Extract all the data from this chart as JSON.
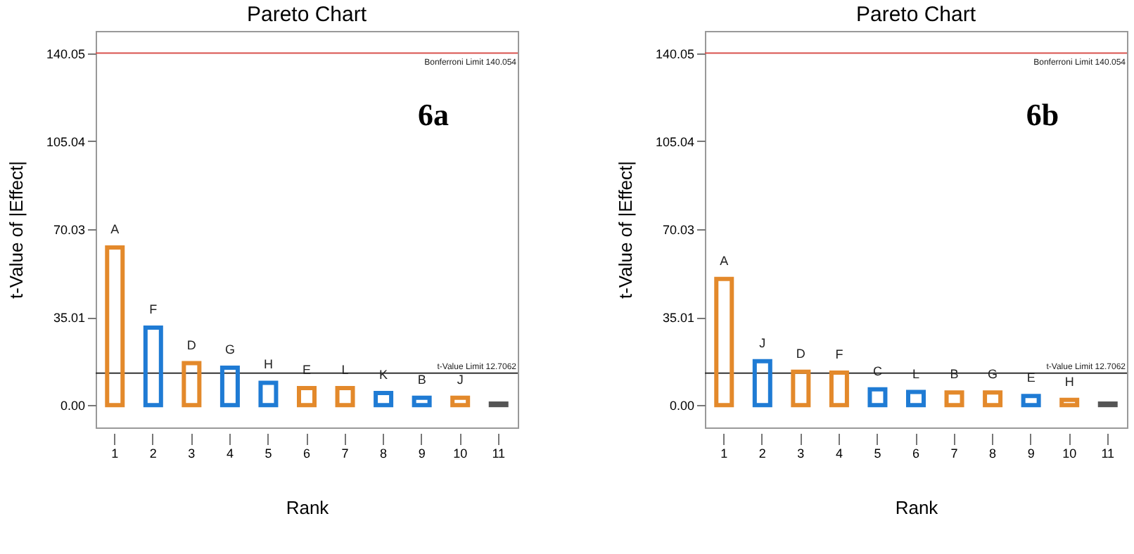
{
  "chart_data": [
    {
      "type": "bar",
      "title": "Pareto Chart",
      "xlabel": "Rank",
      "ylabel": "t-Value of |Effect|",
      "categories": [
        "1",
        "2",
        "3",
        "4",
        "5",
        "6",
        "7",
        "8",
        "9",
        "10",
        "11"
      ],
      "values": [
        62.7,
        30.8,
        16.7,
        14.9,
        8.9,
        6.8,
        6.8,
        4.8,
        2.9,
        2.9,
        0.6
      ],
      "colors": [
        "#e3892b",
        "#1f7bd4",
        "#e3892b",
        "#1f7bd4",
        "#1f7bd4",
        "#e3892b",
        "#e3892b",
        "#1f7bd4",
        "#1f7bd4",
        "#e3892b",
        "#555555"
      ],
      "ylim": [
        -8.9,
        148.9
      ],
      "yticks": [
        {
          "value": 0,
          "label": "0.00"
        },
        {
          "value": 35.01,
          "label": "35.01"
        },
        {
          "value": 70.03,
          "label": "70.03"
        },
        {
          "value": 105.04,
          "label": "105.04"
        },
        {
          "value": 140.05,
          "label": "140.05"
        }
      ],
      "ref_lines": [
        {
          "axis": "y",
          "value": 140.054,
          "label": "Bonferroni Limit 140.054",
          "color": "#d9534f"
        },
        {
          "axis": "y",
          "value": 12.7062,
          "label": "t-Value Limit 12.7062",
          "color": "#333333"
        }
      ],
      "annotations": [
        "6a",
        {
          "text": "A",
          "x": "1",
          "y": 62.7
        },
        {
          "text": "F",
          "x": "2",
          "y": 30.8
        },
        {
          "text": "D",
          "x": "3",
          "y": 16.7
        },
        {
          "text": "G",
          "x": "4",
          "y": 14.9
        },
        {
          "text": "H",
          "x": "5",
          "y": 8.9
        },
        {
          "text": "E",
          "x": "6",
          "y": 6.8
        },
        {
          "text": "L",
          "x": "7",
          "y": 6.8
        },
        {
          "text": "K",
          "x": "8",
          "y": 4.8
        },
        {
          "text": "B",
          "x": "9",
          "y": 2.9
        },
        {
          "text": "J",
          "x": "10",
          "y": 2.9
        }
      ],
      "grid": false
    },
    {
      "type": "bar",
      "title": "Pareto Chart",
      "xlabel": "Rank",
      "ylabel": "t-Value of |Effect|",
      "categories": [
        "1",
        "2",
        "3",
        "4",
        "5",
        "6",
        "7",
        "8",
        "9",
        "10",
        "11"
      ],
      "values": [
        50.2,
        17.5,
        13.3,
        12.9,
        6.3,
        5.2,
        5.0,
        5.0,
        3.6,
        2.1,
        0.6
      ],
      "colors": [
        "#e3892b",
        "#1f7bd4",
        "#e3892b",
        "#e3892b",
        "#1f7bd4",
        "#1f7bd4",
        "#e3892b",
        "#e3892b",
        "#1f7bd4",
        "#e3892b",
        "#555555"
      ],
      "ylim": [
        -8.9,
        148.9
      ],
      "yticks": [
        {
          "value": 0,
          "label": "0.00"
        },
        {
          "value": 35.01,
          "label": "35.01"
        },
        {
          "value": 70.03,
          "label": "70.03"
        },
        {
          "value": 105.04,
          "label": "105.04"
        },
        {
          "value": 140.05,
          "label": "140.05"
        }
      ],
      "ref_lines": [
        {
          "axis": "y",
          "value": 140.054,
          "label": "Bonferroni Limit 140.054",
          "color": "#d9534f"
        },
        {
          "axis": "y",
          "value": 12.7062,
          "label": "t-Value Limit 12.7062",
          "color": "#333333"
        }
      ],
      "annotations": [
        "6b",
        {
          "text": "A",
          "x": "1",
          "y": 50.2
        },
        {
          "text": "J",
          "x": "2",
          "y": 17.5
        },
        {
          "text": "D",
          "x": "3",
          "y": 13.3
        },
        {
          "text": "F",
          "x": "4",
          "y": 12.9
        },
        {
          "text": "C",
          "x": "5",
          "y": 6.3
        },
        {
          "text": "L",
          "x": "6",
          "y": 5.2
        },
        {
          "text": "B",
          "x": "7",
          "y": 5.0
        },
        {
          "text": "G",
          "x": "8",
          "y": 5.0
        },
        {
          "text": "E",
          "x": "9",
          "y": 3.6
        },
        {
          "text": "H",
          "x": "10",
          "y": 2.1
        }
      ],
      "grid": false
    }
  ]
}
